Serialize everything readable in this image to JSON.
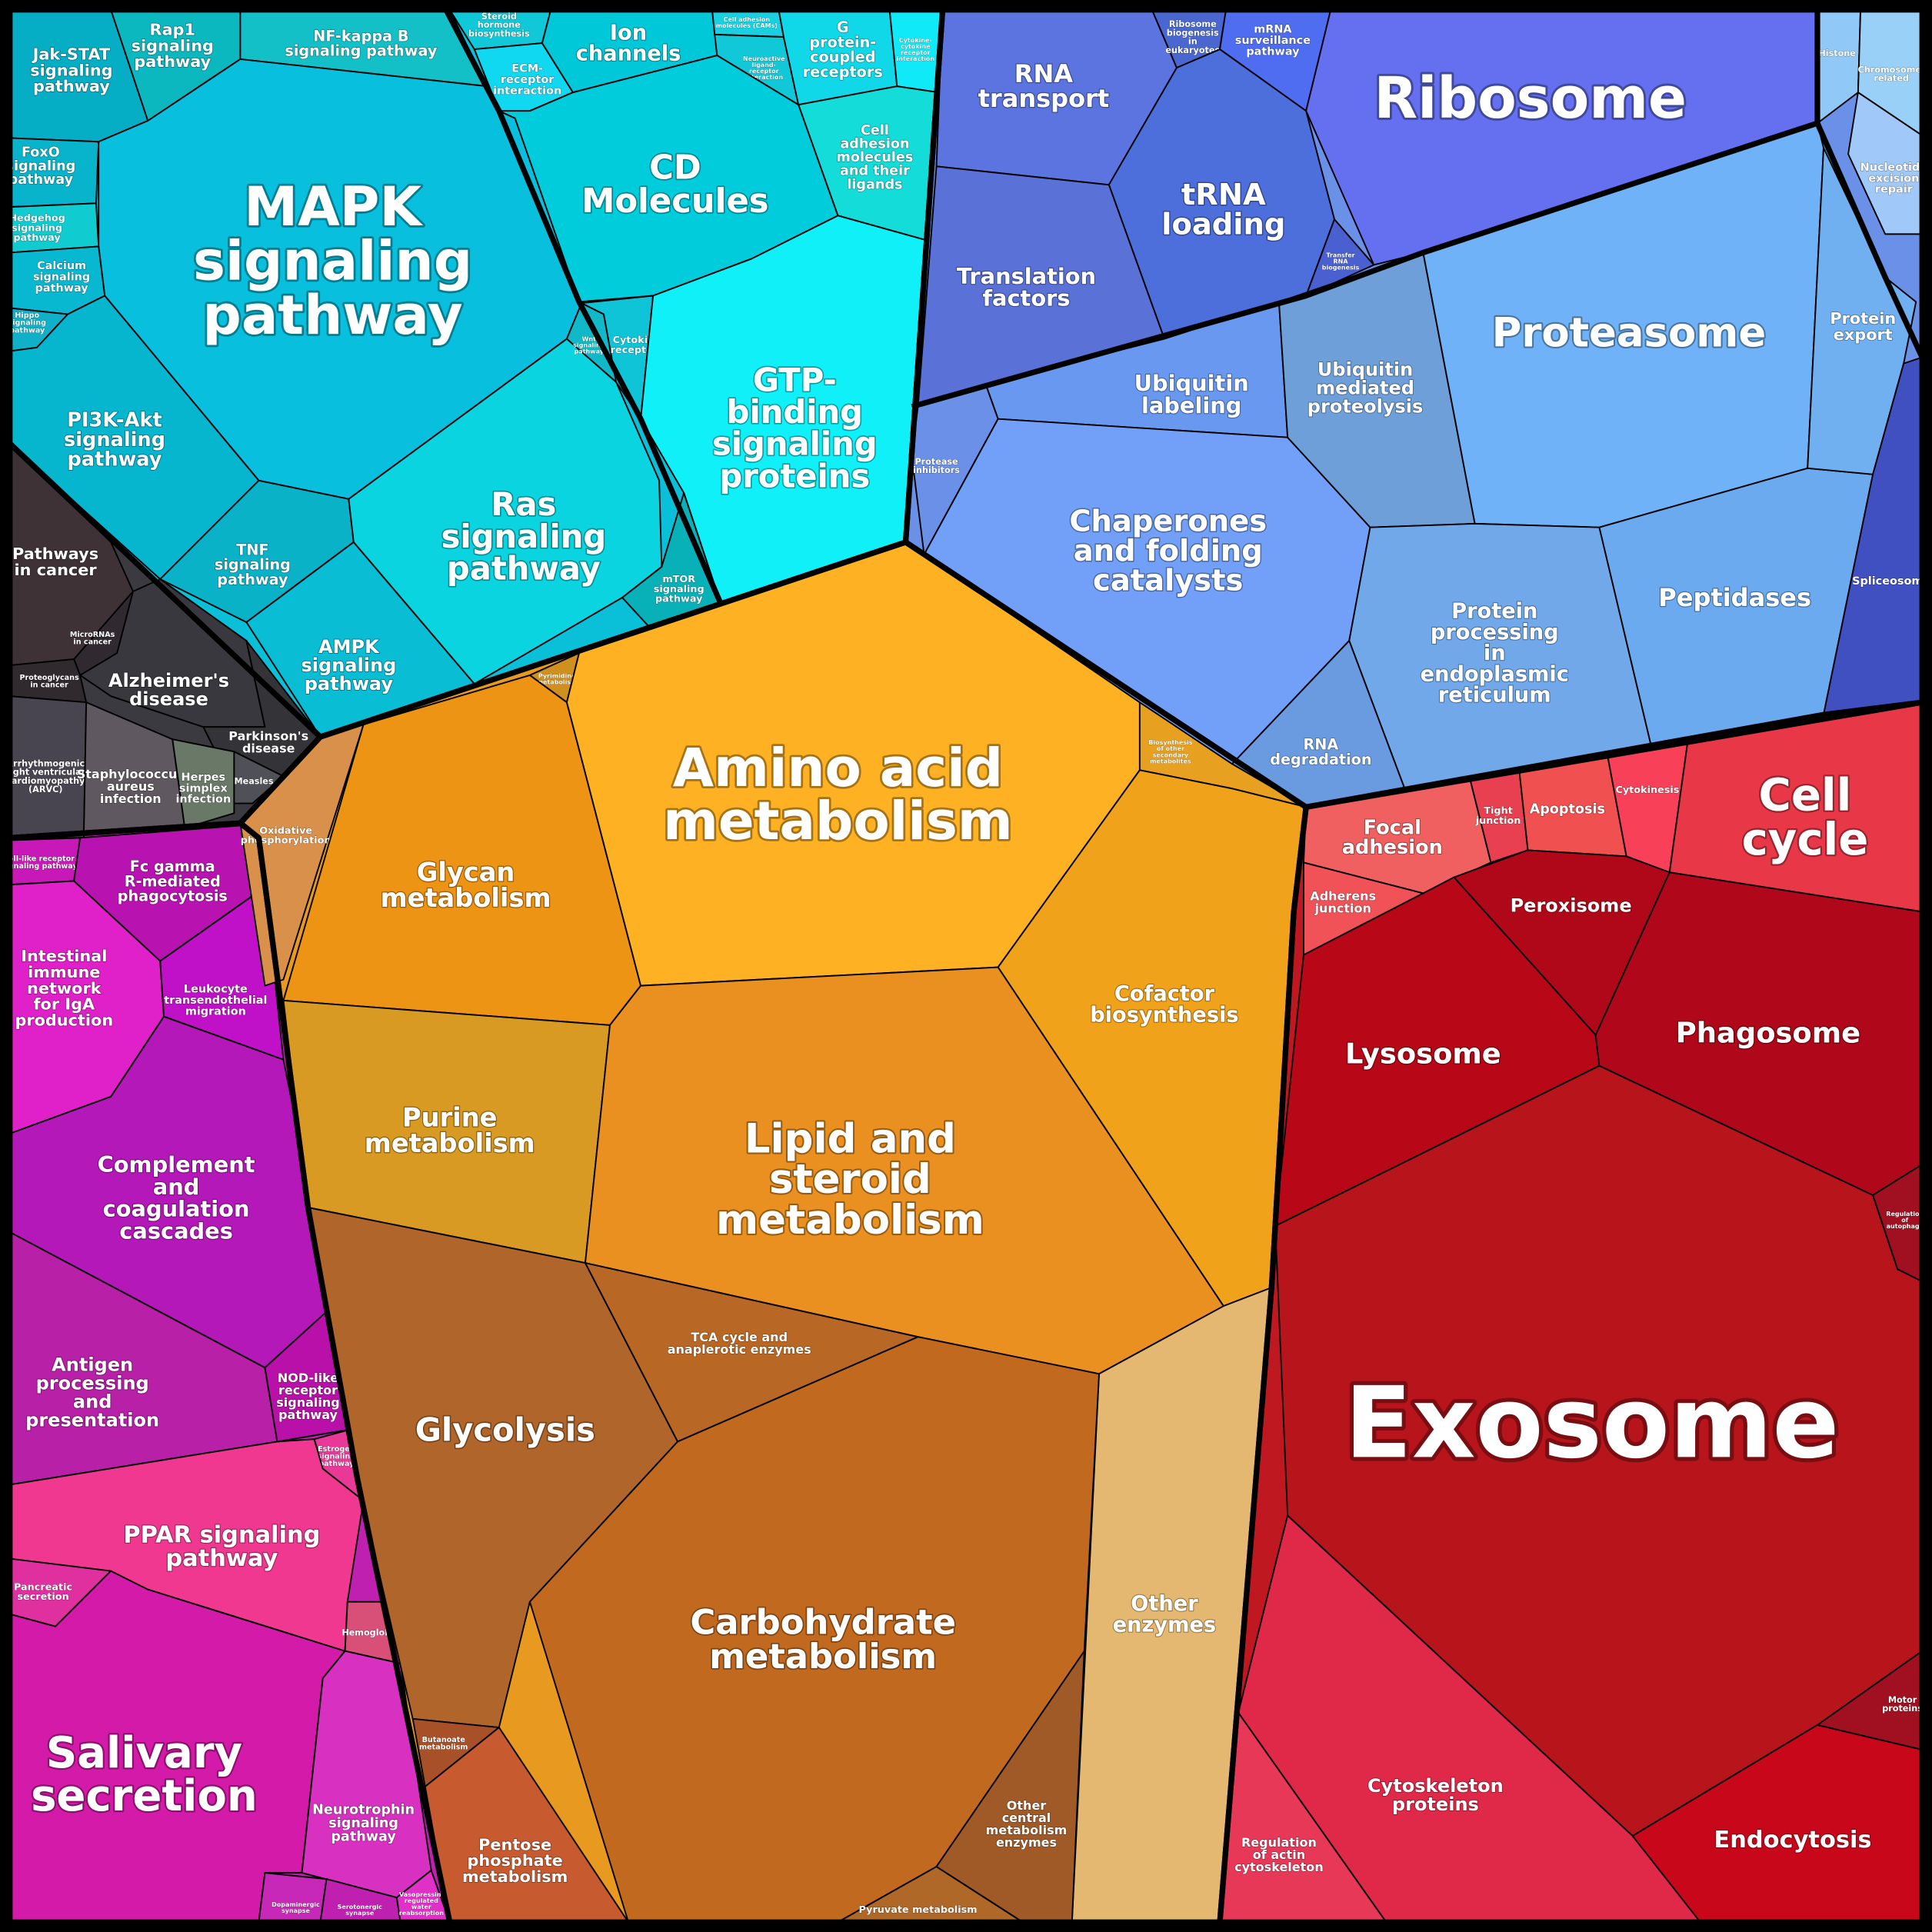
{
  "cells": [
    {
      "lines": [
        "Jak-STAT",
        "signaling",
        "pathway"
      ]
    },
    {
      "lines": [
        "Rap1",
        "signaling",
        "pathway"
      ]
    },
    {
      "lines": [
        "NF-kappa B",
        "signaling pathway"
      ]
    },
    {
      "lines": [
        "MAPK",
        "signaling",
        "pathway"
      ]
    },
    {
      "lines": [
        "FoxO",
        "signaling",
        "pathway"
      ]
    },
    {
      "lines": [
        "Hedgehog",
        "signaling",
        "pathway"
      ]
    },
    {
      "lines": [
        "Calcium",
        "signaling",
        "pathway"
      ]
    },
    {
      "lines": [
        "Hippo",
        "signaling",
        "pathway"
      ]
    },
    {
      "lines": [
        "PI3K-Akt",
        "signaling",
        "pathway"
      ]
    },
    {
      "lines": [
        "TNF",
        "signaling",
        "pathway"
      ]
    },
    {
      "lines": [
        "AMPK",
        "signaling",
        "pathway"
      ]
    },
    {
      "lines": [
        "Ras",
        "signaling",
        "pathway"
      ]
    },
    {
      "lines": [
        "Steroid",
        "hormone",
        "biosynthesis"
      ]
    },
    {
      "lines": [
        "ECM-",
        "receptor",
        "interaction"
      ]
    },
    {
      "lines": [
        "Ion",
        "channels"
      ]
    },
    {
      "lines": [
        "Cell adhesion",
        "molecules (CAMs)"
      ]
    },
    {
      "lines": [
        "Neuroactive",
        "ligand-",
        "receptor",
        "interaction"
      ]
    },
    {
      "lines": [
        "G",
        "protein-",
        "coupled",
        "receptors"
      ]
    },
    {
      "lines": [
        "Cytokine-",
        "cytokine",
        "receptor",
        "interaction"
      ]
    },
    {
      "lines": [
        "Cell",
        "adhesion",
        "molecules",
        "and their",
        "ligands"
      ]
    },
    {
      "lines": [
        "CD",
        "Molecules"
      ]
    },
    {
      "lines": [
        "Wnt",
        "signaling",
        "pathway"
      ]
    },
    {
      "lines": [
        "Cytokine",
        "receptors"
      ]
    },
    {
      "lines": [
        "GTP-",
        "binding",
        "signaling",
        "proteins"
      ]
    },
    {
      "lines": [
        "mTOR",
        "signaling",
        "pathway"
      ]
    },
    {
      "lines": [
        "Pathways",
        "in cancer"
      ]
    },
    {
      "lines": [
        "Alzheimer's",
        "disease"
      ]
    },
    {
      "lines": [
        "MicroRNAs",
        "in cancer"
      ]
    },
    {
      "lines": [
        "Proteoglycans",
        "in cancer"
      ]
    },
    {
      "lines": [
        "Parkinson's",
        "disease"
      ]
    },
    {
      "lines": [
        "Arrhythmogenic",
        "right ventricular",
        "cardiomyopathy",
        "(ARVC)"
      ]
    },
    {
      "lines": [
        "Staphylococcus",
        "aureus",
        "infection"
      ]
    },
    {
      "lines": [
        "Herpes",
        "simplex",
        "infection"
      ]
    },
    {
      "lines": [
        "Measles"
      ]
    },
    {
      "lines": [
        "Toll-like receptor",
        "signaling pathway"
      ]
    },
    {
      "lines": [
        "Fc gamma",
        "R-mediated",
        "phagocytosis"
      ]
    },
    {
      "lines": [
        "Intestinal",
        "immune",
        "network",
        "for IgA",
        "production"
      ]
    },
    {
      "lines": [
        "Leukocyte",
        "transendothelial",
        "migration"
      ]
    },
    {
      "lines": [
        "Complement",
        "and",
        "coagulation",
        "cascades"
      ]
    },
    {
      "lines": [
        "Antigen",
        "processing",
        "and",
        "presentation"
      ]
    },
    {
      "lines": [
        "NOD-like",
        "receptor",
        "signaling",
        "pathway"
      ]
    },
    {
      "lines": [
        "Estrogen",
        "signaling",
        "pathway"
      ]
    },
    {
      "lines": [
        "PPAR signaling",
        "pathway"
      ]
    },
    {
      "lines": [
        "Pancreatic",
        "secretion"
      ]
    },
    {
      "lines": [
        "Salivary",
        "secretion"
      ]
    },
    {
      "lines": [
        "Hemoglobin"
      ]
    },
    {
      "lines": [
        "Neurotrophin",
        "signaling",
        "pathway"
      ]
    },
    {
      "lines": [
        "Dopaminergic",
        "synapse"
      ]
    },
    {
      "lines": [
        "Serotonergic",
        "synapse"
      ]
    },
    {
      "lines": [
        "Vasopressin-",
        "regulated",
        "water",
        "reabsorption"
      ]
    },
    {
      "lines": [
        "Oxidative",
        "phosphorylation"
      ]
    },
    {
      "lines": [
        "Pyrimidine",
        "metabolism"
      ]
    },
    {
      "lines": [
        "Glycan",
        "metabolism"
      ]
    },
    {
      "lines": [
        "Amino acid",
        "metabolism"
      ]
    },
    {
      "lines": [
        "Biosynthesis",
        "of other",
        "secondary",
        "metabolites"
      ]
    },
    {
      "lines": [
        "Cofactor",
        "biosynthesis"
      ]
    },
    {
      "lines": [
        "Purine",
        "metabolism"
      ]
    },
    {
      "lines": [
        "Lipid and",
        "steroid",
        "metabolism"
      ]
    },
    {
      "lines": [
        "Other",
        "enzymes"
      ]
    },
    {
      "lines": [
        "Glycolysis"
      ]
    },
    {
      "lines": [
        "TCA cycle and",
        "anaplerotic enzymes"
      ]
    },
    {
      "lines": [
        "Carbohydrate",
        "metabolism"
      ]
    },
    {
      "lines": [
        "Butanoate",
        "metabolism"
      ]
    },
    {
      "lines": [
        "Pentose",
        "phosphate",
        "metabolism"
      ]
    },
    {
      "lines": [
        "Other",
        "central",
        "metabolism",
        "enzymes"
      ]
    },
    {
      "lines": [
        "Pyruvate metabolism"
      ]
    },
    {
      "lines": [
        "RNA",
        "transport"
      ]
    },
    {
      "lines": [
        "Ribosome",
        "biogenesis",
        "in",
        "eukaryotes"
      ]
    },
    {
      "lines": [
        "mRNA",
        "surveillance",
        "pathway"
      ]
    },
    {
      "lines": [
        "Ribosome"
      ]
    },
    {
      "lines": [
        "tRNA",
        "loading"
      ]
    },
    {
      "lines": [
        "Translation",
        "factors"
      ]
    },
    {
      "lines": [
        "Transfer",
        "RNA",
        "biogenesis"
      ]
    },
    {
      "lines": [
        "Ubiquitin",
        "labeling"
      ]
    },
    {
      "lines": [
        "Protease",
        "inhibitors"
      ]
    },
    {
      "lines": [
        "Chaperones",
        "and folding",
        "catalysts"
      ]
    },
    {
      "lines": [
        "Ubiquitin",
        "mediated",
        "proteolysis"
      ]
    },
    {
      "lines": [
        "Proteasome"
      ]
    },
    {
      "lines": [
        "Protein",
        "processing",
        "in",
        "endoplasmic",
        "reticulum"
      ]
    },
    {
      "lines": [
        "Peptidases"
      ]
    },
    {
      "lines": [
        "RNA",
        "degradation"
      ]
    },
    {
      "lines": [
        "Protein",
        "export"
      ]
    },
    {
      "lines": [
        "Spliceosome"
      ]
    },
    {
      "lines": [
        "Histone"
      ]
    },
    {
      "lines": [
        "Chromosome-",
        "related"
      ]
    },
    {
      "lines": [
        "Nucleotide",
        "excision",
        "repair"
      ]
    },
    {
      "lines": [
        "Focal",
        "adhesion"
      ]
    },
    {
      "lines": [
        "Adherens",
        "junction"
      ]
    },
    {
      "lines": [
        "Tight",
        "junction"
      ]
    },
    {
      "lines": [
        "Apoptosis"
      ]
    },
    {
      "lines": [
        "Cytokinesis"
      ]
    },
    {
      "lines": [
        "Cell",
        "cycle"
      ]
    },
    {
      "lines": [
        "Peroxisome"
      ]
    },
    {
      "lines": [
        "Lysosome"
      ]
    },
    {
      "lines": [
        "Phagosome"
      ]
    },
    {
      "lines": [
        "Exosome"
      ]
    },
    {
      "lines": [
        "Regulation",
        "of",
        "autophagy"
      ]
    },
    {
      "lines": [
        "Cytoskeleton",
        "proteins"
      ]
    },
    {
      "lines": [
        "Regulation",
        "of actin",
        "cytoskeleton"
      ]
    },
    {
      "lines": [
        "Endocytosis"
      ]
    },
    {
      "lines": [
        "Motor",
        "proteins"
      ]
    }
  ]
}
